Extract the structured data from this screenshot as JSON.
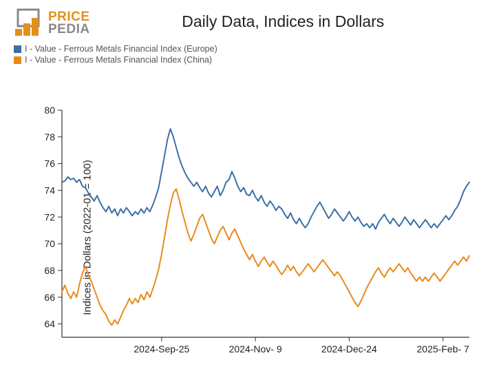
{
  "logo": {
    "top": "PRICE",
    "bottom": "PEDIA",
    "accent_color": "#e2901b",
    "gray_color": "#888888",
    "dark_color": "#555555"
  },
  "title": "Daily Data, Indices in Dollars",
  "legend": [
    {
      "label": "I - Value - Ferrous Metals Financial Index (Europe)",
      "color": "#3c6fa6"
    },
    {
      "label": "I - Value - Ferrous Metals Financial Index (China)",
      "color": "#e88b1a"
    }
  ],
  "chart": {
    "type": "line",
    "ylabel": "Indices in Dollars (2022-01 = 100)",
    "ylim": [
      63,
      80
    ],
    "yticks": [
      64,
      66,
      68,
      70,
      72,
      74,
      76,
      78,
      80
    ],
    "x_count": 140,
    "xticks": [
      {
        "pos": 34,
        "label": "2024-Sep-25"
      },
      {
        "pos": 66,
        "label": "2024-Nov- 9"
      },
      {
        "pos": 98,
        "label": "2024-Dec-24"
      },
      {
        "pos": 130,
        "label": "2025-Feb- 7"
      }
    ],
    "line_width": 2,
    "background_color": "#ffffff",
    "axis_color": "#333333",
    "tick_font_size": 14,
    "series": [
      {
        "name": "europe",
        "color": "#3c6fa6",
        "values": [
          74.6,
          74.7,
          75.0,
          74.8,
          74.9,
          74.6,
          74.8,
          74.3,
          74.2,
          73.8,
          73.5,
          73.2,
          73.6,
          73.1,
          72.7,
          72.4,
          72.8,
          72.3,
          72.6,
          72.1,
          72.6,
          72.3,
          72.7,
          72.4,
          72.1,
          72.4,
          72.2,
          72.6,
          72.3,
          72.7,
          72.4,
          72.9,
          73.5,
          74.2,
          75.4,
          76.6,
          77.8,
          78.6,
          78.0,
          77.2,
          76.4,
          75.8,
          75.3,
          74.9,
          74.6,
          74.3,
          74.6,
          74.2,
          73.9,
          74.3,
          73.8,
          73.5,
          73.9,
          74.3,
          73.6,
          74.0,
          74.6,
          74.8,
          75.4,
          74.9,
          74.3,
          73.9,
          74.2,
          73.7,
          73.6,
          74.0,
          73.5,
          73.2,
          73.6,
          73.1,
          72.8,
          73.2,
          72.9,
          72.5,
          72.8,
          72.6,
          72.2,
          71.9,
          72.3,
          71.8,
          71.5,
          71.9,
          71.5,
          71.2,
          71.5,
          72.0,
          72.4,
          72.8,
          73.1,
          72.7,
          72.3,
          71.9,
          72.2,
          72.6,
          72.3,
          72.0,
          71.7,
          72.0,
          72.4,
          72.0,
          71.7,
          72.0,
          71.6,
          71.3,
          71.5,
          71.2,
          71.5,
          71.1,
          71.6,
          71.9,
          72.2,
          71.8,
          71.5,
          71.9,
          71.6,
          71.3,
          71.6,
          72.0,
          71.7,
          71.4,
          71.8,
          71.5,
          71.2,
          71.5,
          71.8,
          71.5,
          71.2,
          71.5,
          71.2,
          71.5,
          71.8,
          72.1,
          71.8,
          72.1,
          72.5,
          72.8,
          73.3,
          73.9,
          74.3,
          74.6
        ]
      },
      {
        "name": "china",
        "color": "#e88b1a",
        "values": [
          66.4,
          66.9,
          66.3,
          65.9,
          66.4,
          66.0,
          67.0,
          67.8,
          68.3,
          67.7,
          67.2,
          66.6,
          66.0,
          65.4,
          65.0,
          64.7,
          64.2,
          63.9,
          64.3,
          64.0,
          64.5,
          65.0,
          65.4,
          65.9,
          65.5,
          65.9,
          65.6,
          66.2,
          65.8,
          66.4,
          66.0,
          66.6,
          67.3,
          68.1,
          69.2,
          70.5,
          71.8,
          72.9,
          73.8,
          74.1,
          73.3,
          72.4,
          71.6,
          70.8,
          70.2,
          70.7,
          71.3,
          71.9,
          72.2,
          71.6,
          71.0,
          70.4,
          70.0,
          70.5,
          71.0,
          71.3,
          70.8,
          70.3,
          70.8,
          71.1,
          70.6,
          70.1,
          69.6,
          69.2,
          68.8,
          69.2,
          68.7,
          68.3,
          68.7,
          69.0,
          68.6,
          68.3,
          68.7,
          68.4,
          68.0,
          67.7,
          68.0,
          68.4,
          68.0,
          68.3,
          67.9,
          67.6,
          67.9,
          68.2,
          68.5,
          68.2,
          67.9,
          68.2,
          68.5,
          68.8,
          68.5,
          68.2,
          67.9,
          67.6,
          67.9,
          67.6,
          67.2,
          66.8,
          66.4,
          66.0,
          65.6,
          65.3,
          65.7,
          66.2,
          66.7,
          67.1,
          67.5,
          67.9,
          68.2,
          67.8,
          67.5,
          67.9,
          68.2,
          67.9,
          68.2,
          68.5,
          68.2,
          67.9,
          68.2,
          67.8,
          67.5,
          67.2,
          67.5,
          67.2,
          67.5,
          67.2,
          67.5,
          67.8,
          67.5,
          67.2,
          67.5,
          67.8,
          68.1,
          68.4,
          68.7,
          68.4,
          68.7,
          69.0,
          68.7,
          69.1
        ]
      }
    ]
  }
}
